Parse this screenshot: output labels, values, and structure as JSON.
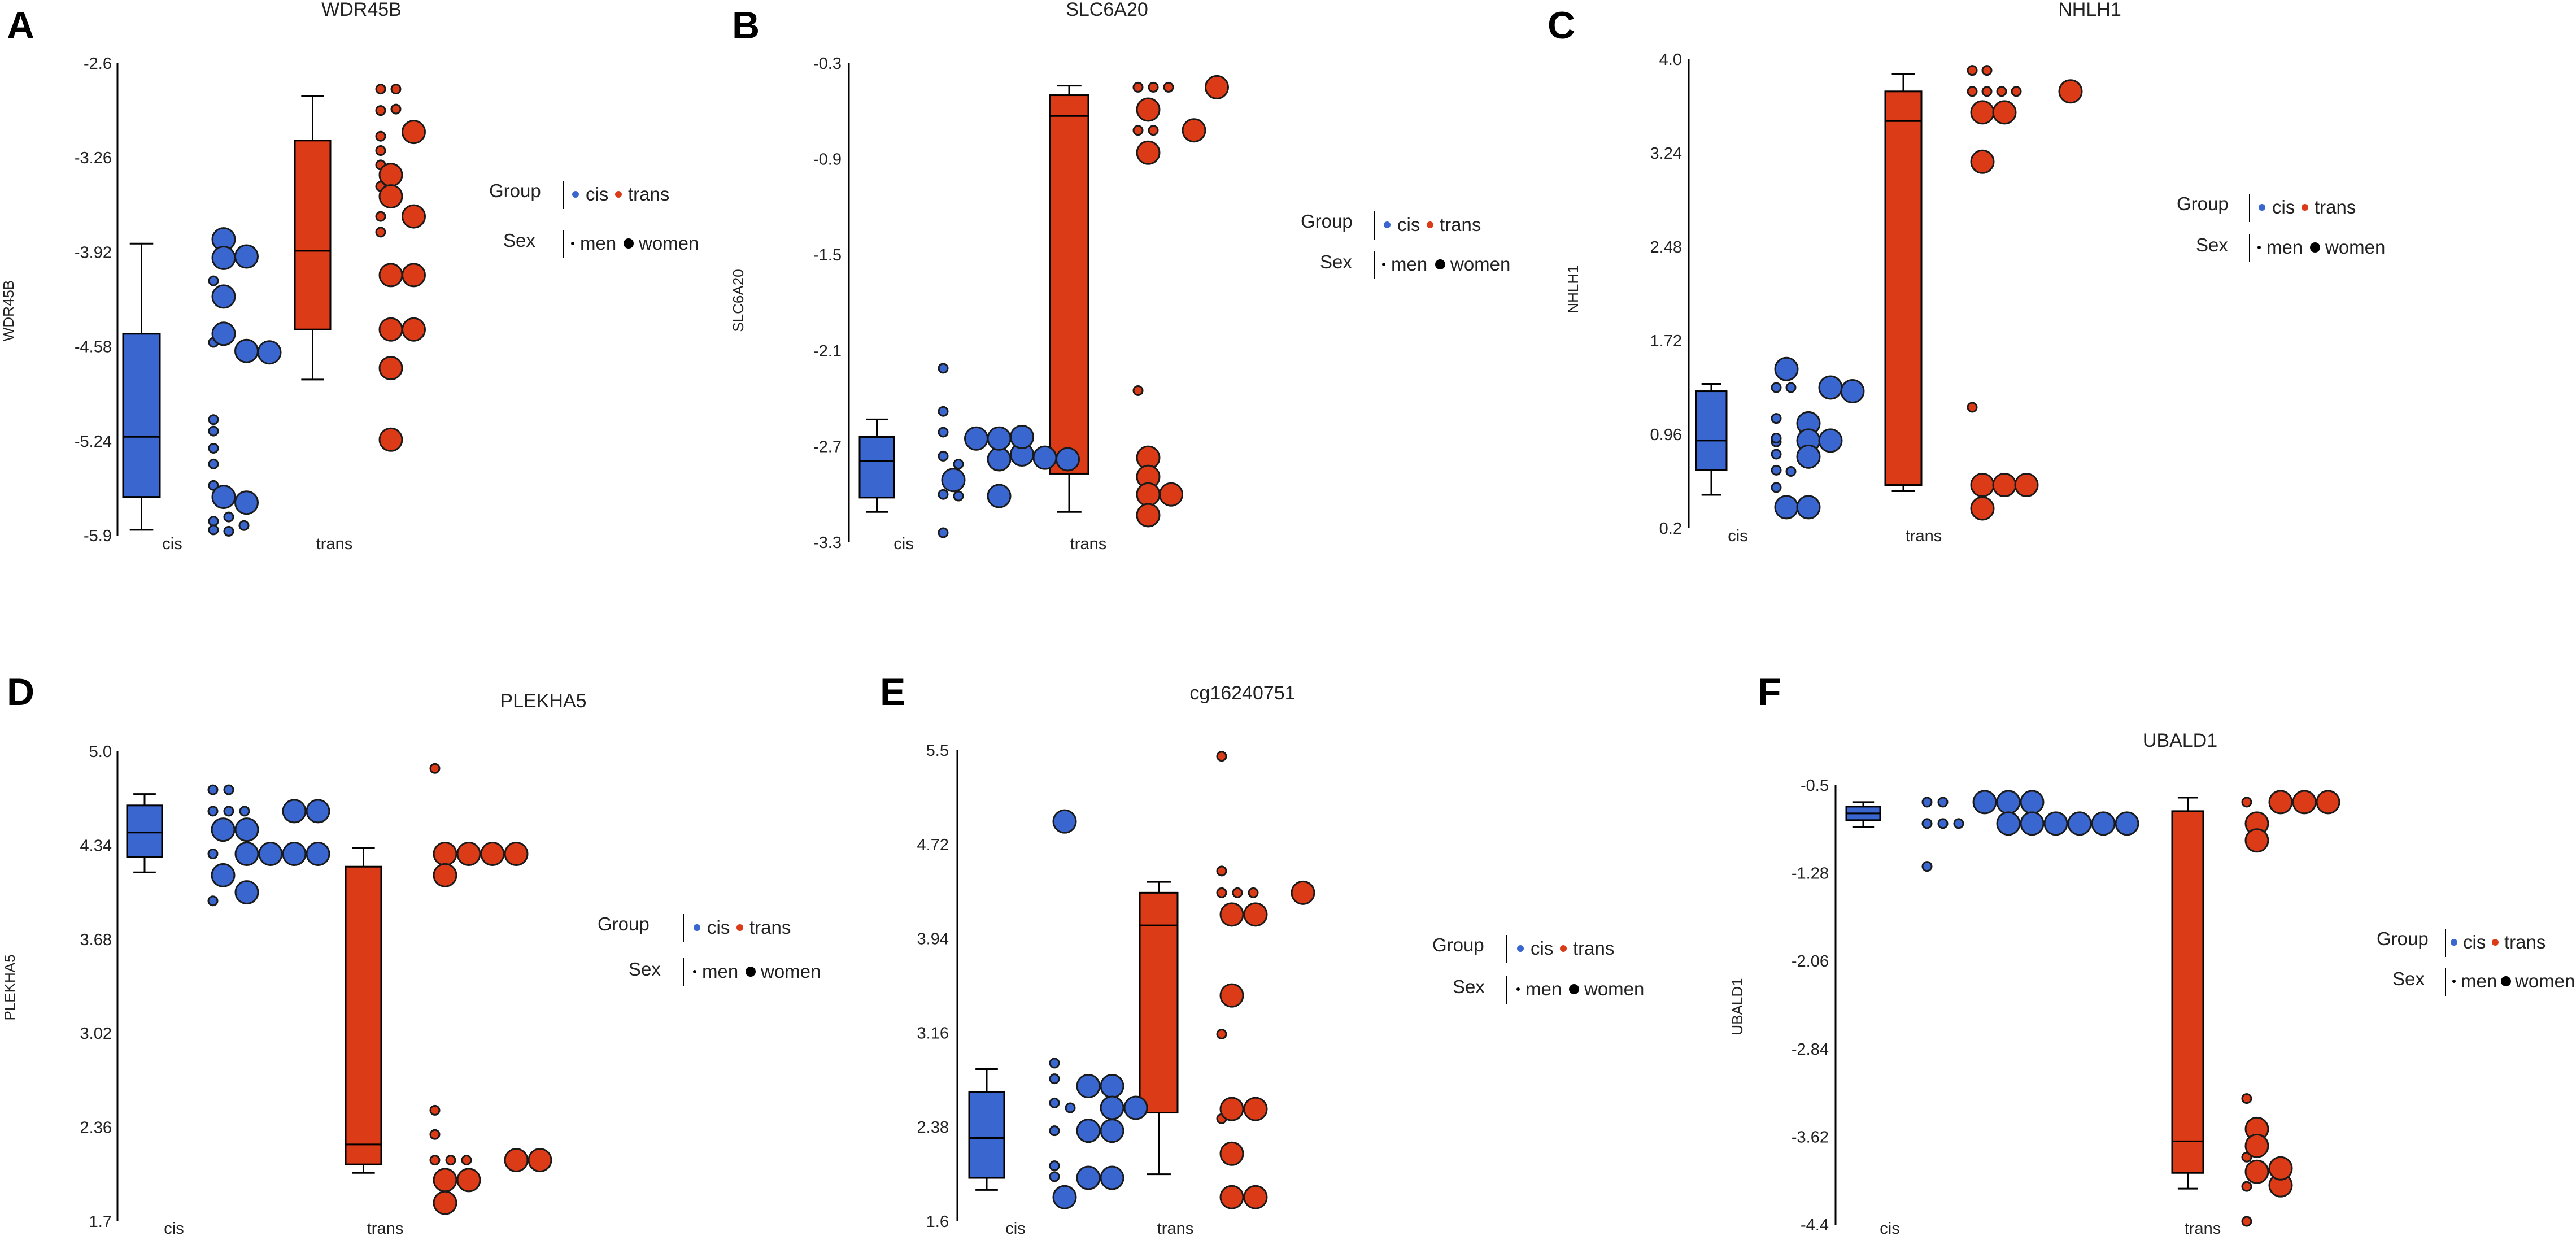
{
  "legend": {
    "group_label": "Group",
    "sex_label": "Sex",
    "group_entries": [
      "cis",
      "trans"
    ],
    "sex_entries": [
      "men",
      "women"
    ]
  },
  "colors": {
    "cis": "#3a66cf",
    "trans": "#dc3b18",
    "outline": "#1a1a1a"
  },
  "chart_data": [
    {
      "type": "box+dot",
      "panel": "A",
      "title": "WDR45B",
      "ylabel": "WDR45B",
      "categories": [
        "cis",
        "trans"
      ],
      "yticks": [
        "-2.6",
        "-3.26",
        "-3.92",
        "-4.58",
        "-5.24",
        "-5.9"
      ],
      "ylim": [
        -5.9,
        -2.6
      ],
      "boxes": {
        "cis": {
          "whisker_low": -5.86,
          "q1": -5.63,
          "median": -5.21,
          "q3": -4.49,
          "whisker_high": -3.86
        },
        "trans": {
          "whisker_low": -4.81,
          "q1": -4.46,
          "median": -3.91,
          "q3": -3.14,
          "whisker_high": -2.83
        }
      },
      "points": {
        "cis": {
          "men": [
            -4.12,
            -4.55,
            -5.09,
            -5.17,
            -5.29,
            -5.4,
            -5.55,
            -5.8,
            -5.77,
            -5.83,
            -5.86,
            -5.87
          ],
          "women": [
            -3.83,
            -3.96,
            -3.95,
            -4.23,
            -4.49,
            -4.61,
            -4.62,
            -5.63,
            -5.67
          ]
        },
        "trans": {
          "men": [
            -2.78,
            -2.78,
            -2.93,
            -2.92,
            -3.11,
            -3.21,
            -3.31,
            -3.46,
            -3.67,
            -3.78
          ],
          "women": [
            -3.08,
            -3.38,
            -3.53,
            -3.67,
            -4.08,
            -4.08,
            -4.46,
            -4.46,
            -4.73,
            -5.23
          ]
        }
      }
    },
    {
      "type": "box+dot",
      "panel": "B",
      "title": "SLC6A20",
      "ylabel": "SLC6A20",
      "categories": [
        "cis",
        "trans"
      ],
      "yticks": [
        "-0.3",
        "-0.9",
        "-1.5",
        "-2.1",
        "-2.7",
        "-3.3"
      ],
      "ylim": [
        -3.3,
        -0.3
      ],
      "boxes": {
        "cis": {
          "whisker_low": -3.11,
          "q1": -3.02,
          "median": -2.79,
          "q3": -2.64,
          "whisker_high": -2.53
        },
        "trans": {
          "whisker_low": -3.11,
          "q1": -2.87,
          "median": -0.63,
          "q3": -0.5,
          "whisker_high": -0.44
        }
      },
      "points": {
        "cis": {
          "men": [
            -2.21,
            -2.48,
            -2.61,
            -2.76,
            -3.0,
            -3.01,
            -3.24,
            -2.81
          ],
          "women": [
            -2.78,
            -2.75,
            -2.65,
            -2.77,
            -2.65,
            -2.91,
            -2.78,
            -3.01,
            -2.64
          ]
        },
        "trans": {
          "men": [
            -0.45,
            -0.45,
            -0.45,
            -0.72,
            -0.72,
            -2.35
          ],
          "women": [
            -0.45,
            -0.59,
            -0.72,
            -0.86,
            -2.77,
            -2.89,
            -3.0,
            -3.0,
            -3.13
          ]
        }
      }
    },
    {
      "type": "box+dot",
      "panel": "C",
      "title": "NHLH1",
      "ylabel": "NHLH1",
      "categories": [
        "cis",
        "trans"
      ],
      "yticks": [
        "4.0",
        "3.24",
        "2.48",
        "1.72",
        "0.96",
        "0.2"
      ],
      "ylim": [
        0.2,
        4.0
      ],
      "boxes": {
        "cis": {
          "whisker_low": 0.47,
          "q1": 0.67,
          "median": 0.91,
          "q3": 1.31,
          "whisker_high": 1.37
        },
        "trans": {
          "whisker_low": 0.5,
          "q1": 0.55,
          "median": 3.5,
          "q3": 3.74,
          "whisker_high": 3.88
        }
      },
      "points": {
        "cis": {
          "men": [
            1.34,
            1.34,
            1.09,
            0.8,
            0.67,
            0.66,
            0.53,
            0.9,
            0.93
          ],
          "women": [
            1.49,
            1.34,
            1.31,
            1.05,
            0.91,
            0.91,
            0.37,
            0.37,
            0.78
          ]
        },
        "trans": {
          "men": [
            3.91,
            3.91,
            3.74,
            3.74,
            3.74,
            3.74,
            1.18
          ],
          "women": [
            3.74,
            3.57,
            3.57,
            3.17,
            0.55,
            0.55,
            0.55,
            0.36
          ]
        }
      }
    },
    {
      "type": "box+dot",
      "panel": "D",
      "title": "PLEKHA5",
      "ylabel": "PLEKHA5",
      "categories": [
        "cis",
        "trans"
      ],
      "yticks": [
        "5.0",
        "4.34",
        "3.68",
        "3.02",
        "2.36",
        "1.7"
      ],
      "ylim": [
        1.7,
        5.0
      ],
      "boxes": {
        "cis": {
          "whisker_low": 4.15,
          "q1": 4.26,
          "median": 4.43,
          "q3": 4.62,
          "whisker_high": 4.7
        },
        "trans": {
          "whisker_low": 2.04,
          "q1": 2.1,
          "median": 2.24,
          "q3": 4.19,
          "whisker_high": 4.32
        }
      },
      "points": {
        "cis": {
          "men": [
            4.73,
            4.73,
            4.58,
            4.58,
            4.58,
            4.28,
            3.95
          ],
          "women": [
            4.58,
            4.58,
            4.45,
            4.45,
            4.28,
            4.28,
            4.28,
            4.28,
            4.13,
            4.01
          ]
        },
        "trans": {
          "men": [
            4.88,
            2.48,
            2.31,
            2.13,
            2.13,
            2.13
          ],
          "women": [
            4.28,
            4.28,
            4.28,
            4.28,
            4.13,
            2.13,
            2.13,
            1.99,
            1.99,
            1.83
          ]
        }
      }
    },
    {
      "type": "box+dot",
      "panel": "E",
      "title": "cg16240751",
      "ylabel": "",
      "categories": [
        "cis",
        "trans"
      ],
      "yticks": [
        "5.5",
        "4.72",
        "3.94",
        "3.16",
        "2.38",
        "1.6"
      ],
      "ylim": [
        1.6,
        5.5
      ],
      "boxes": {
        "cis": {
          "whisker_low": 1.86,
          "q1": 1.96,
          "median": 2.29,
          "q3": 2.67,
          "whisker_high": 2.86
        },
        "trans": {
          "whisker_low": 1.99,
          "q1": 2.5,
          "median": 4.05,
          "q3": 4.32,
          "whisker_high": 4.41
        }
      },
      "points": {
        "cis": {
          "men": [
            2.91,
            2.78,
            2.58,
            2.54,
            2.35,
            2.06,
            1.97
          ],
          "women": [
            4.91,
            2.72,
            2.72,
            2.54,
            2.54,
            2.35,
            2.35,
            1.96,
            1.96,
            1.8
          ]
        },
        "trans": {
          "men": [
            5.45,
            4.5,
            4.32,
            4.32,
            4.32,
            3.15,
            2.45
          ],
          "women": [
            4.32,
            4.14,
            4.14,
            3.47,
            2.53,
            2.53,
            2.16,
            1.8,
            1.8
          ]
        }
      }
    },
    {
      "type": "box+dot",
      "panel": "F",
      "title": "UBALD1",
      "ylabel": "UBALD1",
      "categories": [
        "cis",
        "trans"
      ],
      "yticks": [
        "-0.5",
        "-1.28",
        "-2.06",
        "-2.84",
        "-3.62",
        "-4.4"
      ],
      "ylim": [
        -4.4,
        -0.5
      ],
      "boxes": {
        "cis": {
          "whisker_low": -0.87,
          "q1": -0.81,
          "median": -0.75,
          "q3": -0.69,
          "whisker_high": -0.65
        },
        "trans": {
          "whisker_low": -4.08,
          "q1": -3.94,
          "median": -3.66,
          "q3": -0.73,
          "whisker_high": -0.61
        }
      },
      "points": {
        "cis": {
          "men": [
            -0.65,
            -0.65,
            -0.84,
            -0.84,
            -0.84,
            -1.22
          ],
          "women": [
            -0.65,
            -0.65,
            -0.65,
            -0.84,
            -0.84,
            -0.84,
            -0.84,
            -0.84,
            -0.84
          ]
        },
        "trans": {
          "men": [
            -0.65,
            -3.28,
            -3.8,
            -4.06,
            -4.37
          ],
          "women": [
            -0.65,
            -0.65,
            -0.65,
            -0.84,
            -0.99,
            -3.55,
            -3.7,
            -3.93,
            -4.05,
            -3.9
          ]
        }
      }
    }
  ]
}
